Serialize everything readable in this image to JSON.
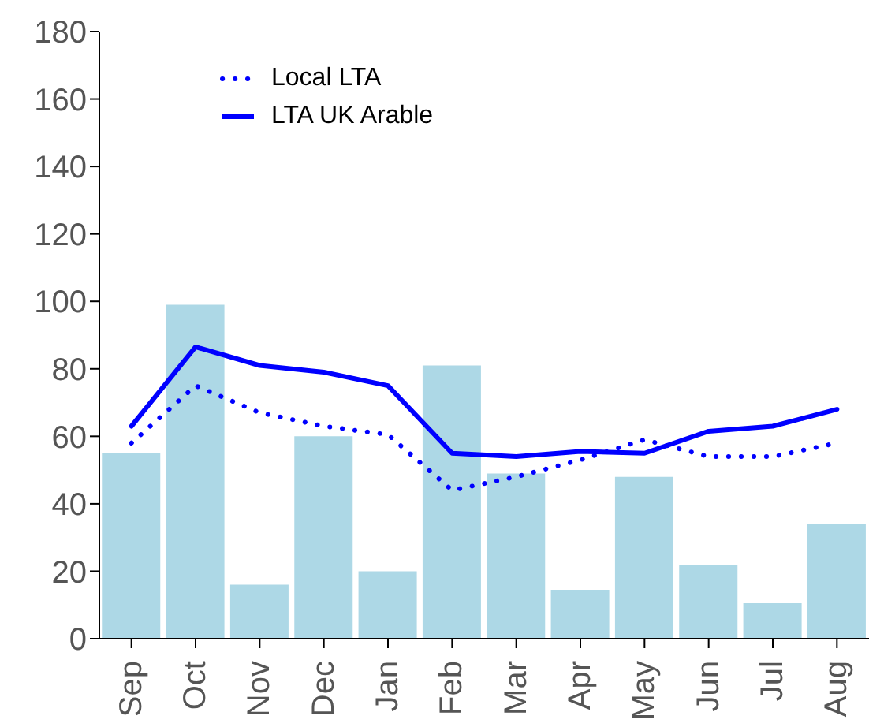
{
  "chart_data": {
    "type": "bar",
    "categories": [
      "Sep",
      "Oct",
      "Nov",
      "Dec",
      "Jan",
      "Feb",
      "Mar",
      "Apr",
      "May",
      "Jun",
      "Jul",
      "Aug"
    ],
    "series": [
      {
        "color": "#add8e6",
        "values": [
          55,
          99,
          16,
          60,
          20,
          81,
          49,
          14.5,
          48,
          22,
          10.5,
          34
        ]
      },
      {
        "type": "line",
        "name": "Local LTA",
        "color": "#0000ff",
        "line_style": "dotted",
        "values": [
          58,
          75,
          67,
          63,
          60.5,
          44,
          48,
          53,
          59,
          54,
          54,
          58
        ]
      },
      {
        "type": "line",
        "name": "LTA UK Arable",
        "color": "#0000ff",
        "line_style": "solid",
        "values": [
          63,
          86.5,
          81,
          79,
          75,
          55,
          54,
          55.5,
          55,
          61.5,
          63,
          68
        ]
      }
    ],
    "ylim": [
      0,
      180
    ],
    "yticks": [
      0,
      20,
      40,
      60,
      80,
      100,
      120,
      140,
      160,
      180
    ],
    "grid": false,
    "legend": "top left"
  }
}
